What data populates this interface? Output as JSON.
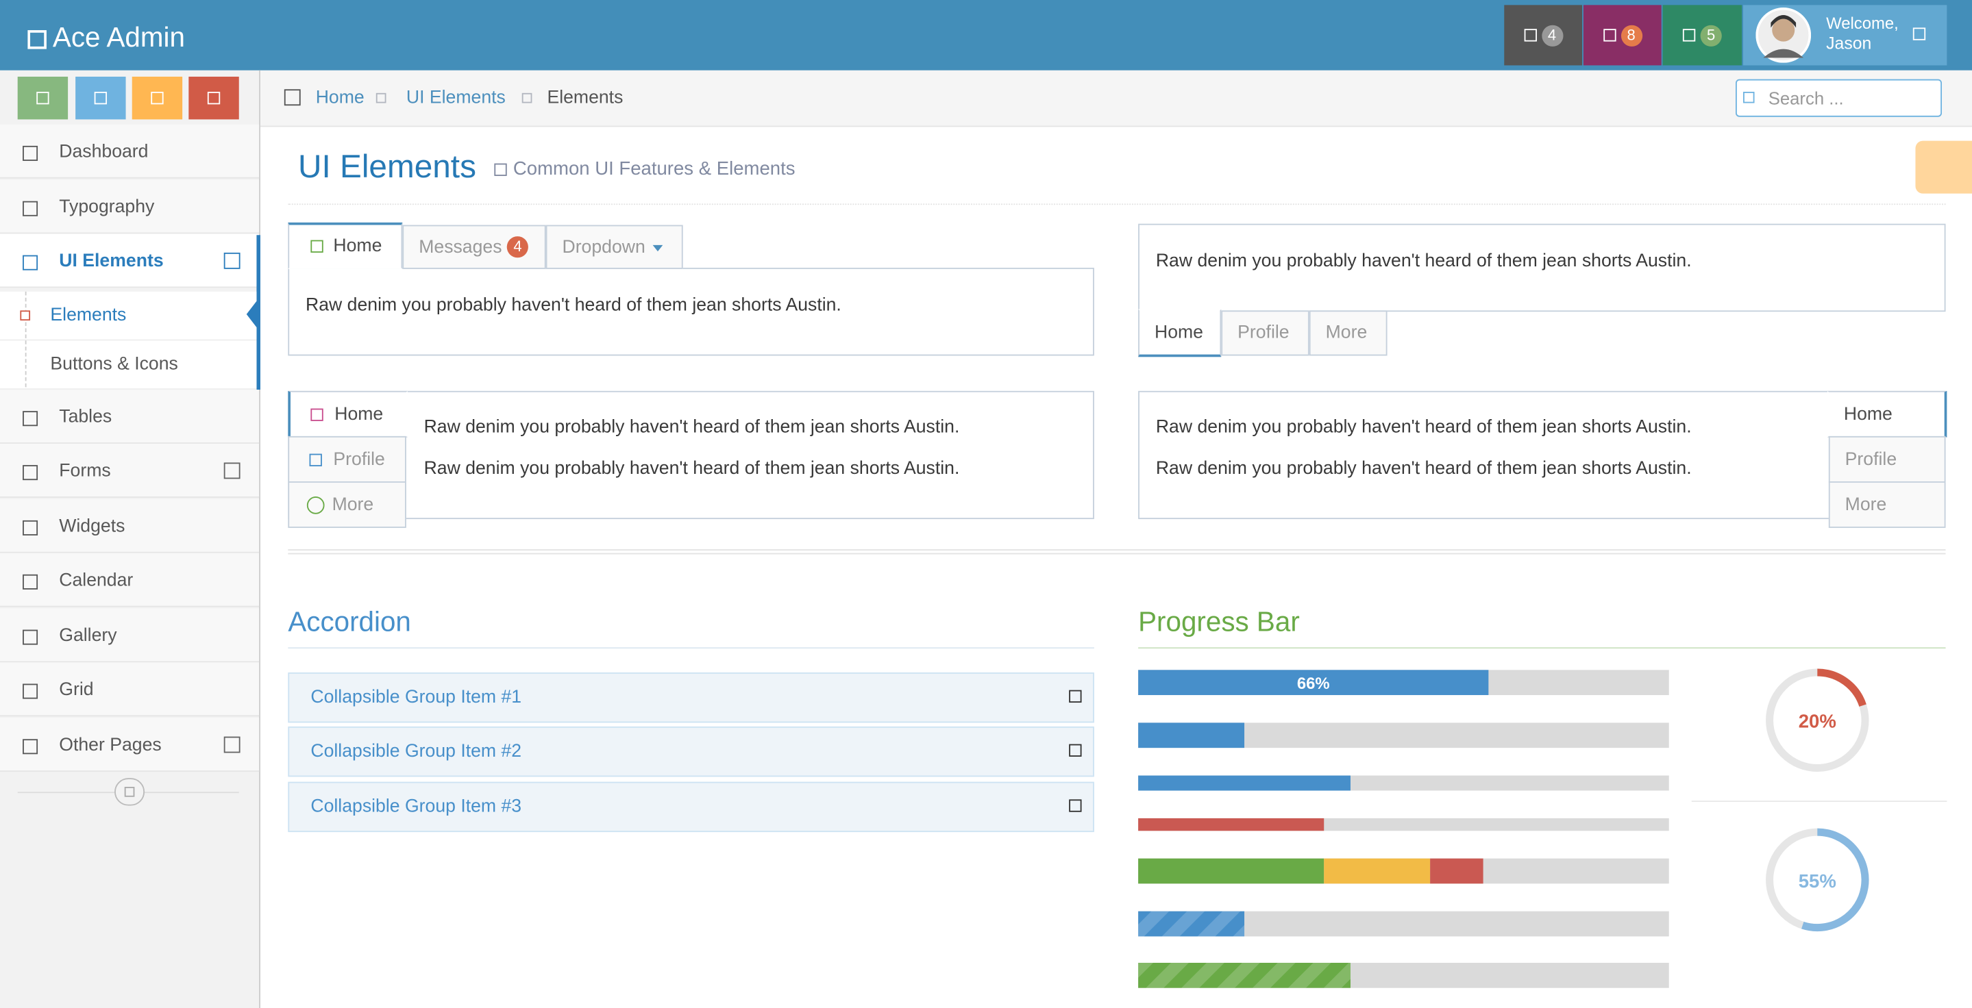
{
  "header": {
    "brand": "Ace Admin",
    "badges": [
      4,
      8,
      5
    ],
    "welcome": "Welcome,",
    "user": "Jason"
  },
  "sidebar": {
    "menu": [
      "Dashboard",
      "Typography",
      "UI Elements",
      "Tables",
      "Forms",
      "Widgets",
      "Calendar",
      "Gallery",
      "Grid",
      "Other Pages"
    ],
    "submenu": [
      "Elements",
      "Buttons & Icons"
    ]
  },
  "breadcrumbs": [
    "Home",
    "UI Elements",
    "Elements"
  ],
  "search_placeholder": "Search ...",
  "page_header": {
    "title": "UI Elements",
    "subtitle": "Common UI Features & Elements"
  },
  "tabs": {
    "top": {
      "tabs": [
        "Home",
        "Messages",
        "Dropdown"
      ],
      "badge": 4,
      "content": "Raw denim you probably haven't heard of them jean shorts Austin."
    },
    "bottom": {
      "tabs": [
        "Home",
        "Profile",
        "More"
      ],
      "content": "Raw denim you probably haven't heard of them jean shorts Austin."
    },
    "left": {
      "tabs": [
        "Home",
        "Profile",
        "More"
      ],
      "content": [
        "Raw denim you probably haven't heard of them jean shorts Austin.",
        "Raw denim you probably haven't heard of them jean shorts Austin."
      ]
    },
    "right": {
      "tabs": [
        "Home",
        "Profile",
        "More"
      ],
      "content": [
        "Raw denim you probably haven't heard of them jean shorts Austin.",
        "Raw denim you probably haven't heard of them jean shorts Austin."
      ]
    }
  },
  "accordion": {
    "title": "Accordion",
    "items": [
      "Collapsible Group Item #1",
      "Collapsible Group Item #2",
      "Collapsible Group Item #3"
    ]
  },
  "progress": {
    "title": "Progress Bar",
    "bars": [
      {
        "values": [
          66
        ],
        "value_labels": [
          "66%"
        ],
        "colors": [
          "#478fca"
        ]
      },
      {
        "values": [
          20
        ],
        "colors": [
          "#478fca"
        ]
      },
      {
        "values": [
          40
        ],
        "colors": [
          "#478fca"
        ]
      },
      {
        "values": [
          35
        ],
        "colors": [
          "#ca5952"
        ]
      },
      {
        "values": [
          35,
          20,
          10
        ],
        "colors": [
          "#69aa46",
          "#f2bb46",
          "#ca5952"
        ]
      },
      {
        "values": [
          20
        ],
        "colors": [
          "#478fca"
        ],
        "striped": true
      },
      {
        "values": [
          40
        ],
        "colors": [
          "#69aa46"
        ],
        "striped": true
      }
    ],
    "pies": [
      {
        "value": 20,
        "label": "20%",
        "color": "#d15b47"
      },
      {
        "value": 55,
        "label": "55%",
        "color": "#87b8e0"
      }
    ]
  }
}
